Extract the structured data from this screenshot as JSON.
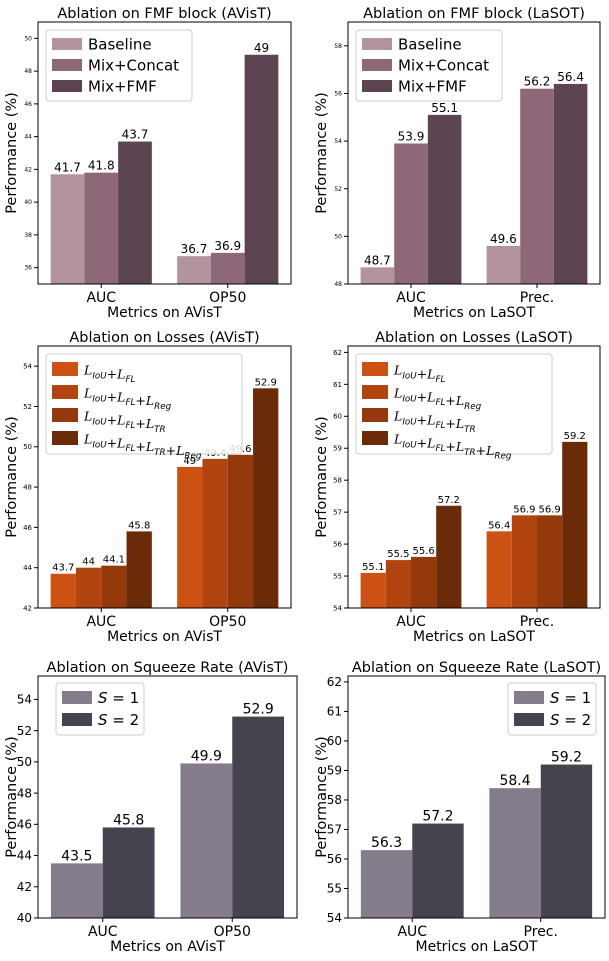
{
  "chart_data": [
    {
      "type": "bar",
      "title": "Ablation on FMF block (AVisT)",
      "xlabel": "Metrics on AVisT",
      "ylabel": "Performance (%)",
      "categories": [
        "AUC",
        "OP50"
      ],
      "ylim": [
        35,
        51
      ],
      "yticks": [
        36,
        38,
        40,
        42,
        44,
        46,
        48,
        50
      ],
      "legend_position": "top-left",
      "series": [
        {
          "name": "Baseline",
          "values": [
            41.7,
            36.7
          ],
          "color": "#b3939f",
          "labels": [
            "41.7",
            "36.7"
          ]
        },
        {
          "name": "Mix+Concat",
          "values": [
            41.8,
            36.9
          ],
          "color": "#8e6878",
          "labels": [
            "41.8",
            "36.9"
          ]
        },
        {
          "name": "Mix+FMF",
          "values": [
            43.7,
            49.0
          ],
          "color": "#5d4452",
          "labels": [
            "43.7",
            "49"
          ]
        }
      ]
    },
    {
      "type": "bar",
      "title": "Ablation on FMF block (LaSOT)",
      "xlabel": "Metrics on LaSOT",
      "ylabel": "Performance (%)",
      "categories": [
        "AUC",
        "Prec."
      ],
      "ylim": [
        48,
        59
      ],
      "yticks": [
        48,
        50,
        52,
        54,
        56,
        58
      ],
      "legend_position": "top-left",
      "series": [
        {
          "name": "Baseline",
          "values": [
            48.7,
            49.6
          ],
          "color": "#b3939f",
          "labels": [
            "48.7",
            "49.6"
          ]
        },
        {
          "name": "Mix+Concat",
          "values": [
            53.9,
            56.2
          ],
          "color": "#8e6878",
          "labels": [
            "53.9",
            "56.2"
          ]
        },
        {
          "name": "Mix+FMF",
          "values": [
            55.1,
            56.4
          ],
          "color": "#5d4452",
          "labels": [
            "55.1",
            "56.4"
          ]
        }
      ]
    },
    {
      "type": "bar",
      "title": "Ablation on Losses (AVisT)",
      "xlabel": "Metrics on AVisT",
      "ylabel": "Performance (%)",
      "categories": [
        "AUC",
        "OP50"
      ],
      "ylim": [
        42,
        55
      ],
      "yticks": [
        42,
        44,
        46,
        48,
        50,
        52,
        54
      ],
      "legend_position": "top-left",
      "series": [
        {
          "name": "L_IoU + L_FL",
          "values": [
            43.7,
            49.0
          ],
          "color": "#cc5214",
          "labels": [
            "43.7",
            "49"
          ]
        },
        {
          "name": "L_IoU + L_FL + L_Reg",
          "values": [
            44.0,
            49.4
          ],
          "color": "#b04510",
          "labels": [
            "44",
            "49.4"
          ]
        },
        {
          "name": "L_IoU + L_FL + L_TR",
          "values": [
            44.1,
            49.6
          ],
          "color": "#94390c",
          "labels": [
            "44.1",
            "49.6"
          ]
        },
        {
          "name": "L_IoU + L_FL + L_TR + L_Reg",
          "values": [
            45.8,
            52.9
          ],
          "color": "#6b2a08",
          "labels": [
            "45.8",
            "52.9"
          ]
        }
      ]
    },
    {
      "type": "bar",
      "title": "Ablation on Losses (LaSOT)",
      "xlabel": "Metrics on LaSOT",
      "ylabel": "Performance (%)",
      "categories": [
        "AUC",
        "Prec."
      ],
      "ylim": [
        54,
        62.2
      ],
      "yticks": [
        54,
        55,
        56,
        57,
        58,
        59,
        60,
        61,
        62
      ],
      "legend_position": "top-left",
      "series": [
        {
          "name": "L_IoU + L_FL",
          "values": [
            55.1,
            56.4
          ],
          "color": "#cc5214",
          "labels": [
            "55.1",
            "56.4"
          ]
        },
        {
          "name": "L_IoU + L_FL + L_Reg",
          "values": [
            55.5,
            56.9
          ],
          "color": "#b04510",
          "labels": [
            "55.5",
            "56.9"
          ]
        },
        {
          "name": "L_IoU + L_FL + L_TR",
          "values": [
            55.6,
            56.9
          ],
          "color": "#94390c",
          "labels": [
            "55.6",
            "56.9"
          ]
        },
        {
          "name": "L_IoU + L_FL + L_TR + L_Reg",
          "values": [
            57.2,
            59.2
          ],
          "color": "#6b2a08",
          "labels": [
            "57.2",
            "59.2"
          ]
        }
      ]
    },
    {
      "type": "bar",
      "title": "Ablation on Squeeze Rate (AVisT)",
      "xlabel": "Metrics on AVisT",
      "ylabel": "Performance (%)",
      "categories": [
        "AUC",
        "OP50"
      ],
      "ylim": [
        40,
        55.5
      ],
      "yticks": [
        40,
        42,
        44,
        46,
        48,
        50,
        52,
        54
      ],
      "legend_position": "top-left",
      "series": [
        {
          "name": "S = 1",
          "values": [
            43.5,
            49.9
          ],
          "color": "#857c8b",
          "labels": [
            "43.5",
            "49.9"
          ]
        },
        {
          "name": "S = 2",
          "values": [
            45.8,
            52.9
          ],
          "color": "#47434e",
          "labels": [
            "45.8",
            "52.9"
          ]
        }
      ]
    },
    {
      "type": "bar",
      "title": "Ablation on Squeeze Rate (LaSOT)",
      "xlabel": "Metrics on LaSOT",
      "ylabel": "Performance (%)",
      "categories": [
        "AUC",
        "Prec."
      ],
      "ylim": [
        54,
        62.2
      ],
      "yticks": [
        54,
        55,
        56,
        57,
        58,
        59,
        60,
        61,
        62
      ],
      "legend_position": "top-right",
      "series": [
        {
          "name": "S = 1",
          "values": [
            56.3,
            58.4
          ],
          "color": "#857c8b",
          "labels": [
            "56.3",
            "58.4"
          ]
        },
        {
          "name": "S = 2",
          "values": [
            57.2,
            59.2
          ],
          "color": "#47434e",
          "labels": [
            "57.2",
            "59.2"
          ]
        }
      ]
    }
  ]
}
